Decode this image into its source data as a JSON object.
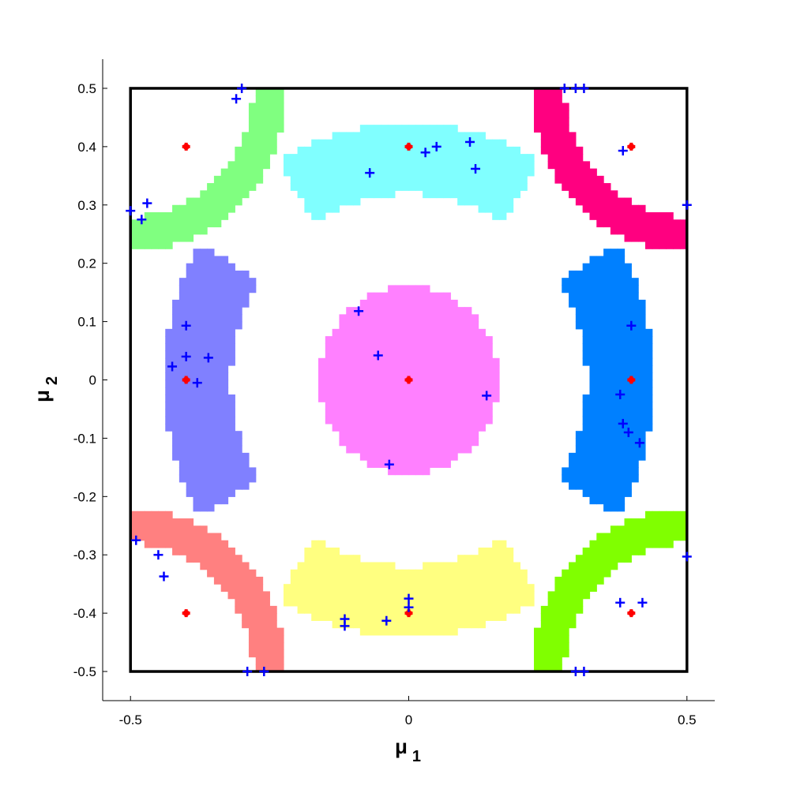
{
  "chart_data": {
    "type": "scatter",
    "title": "",
    "xlabel": {
      "symbol": "μ",
      "subscript": "1"
    },
    "ylabel": {
      "symbol": "μ",
      "subscript": "2"
    },
    "xlim": [
      -0.55,
      0.55
    ],
    "ylim": [
      -0.55,
      0.55
    ],
    "xticks": [
      "-0.5",
      "0",
      "0.5"
    ],
    "yticks": [
      "-0.5",
      "-0.4",
      "-0.3",
      "-0.2",
      "-0.1",
      "0",
      "0.1",
      "0.2",
      "0.3",
      "0.4",
      "0.5"
    ],
    "grid": false,
    "boundary_box": {
      "x": [
        -0.5,
        0.5
      ],
      "y": [
        -0.5,
        0.5
      ],
      "color": "#000000"
    },
    "regions": [
      {
        "shape": "disk",
        "center": [
          0,
          0
        ],
        "r": 0.16,
        "color": "#ff80ff"
      },
      {
        "shape": "arc",
        "center": [
          0,
          0
        ],
        "r_in": 0.32,
        "r_out": 0.44,
        "angle_range": [
          58,
          122
        ],
        "color": "#80ffff"
      },
      {
        "shape": "arc",
        "center": [
          0,
          0
        ],
        "r_in": 0.32,
        "r_out": 0.44,
        "angle_range": [
          238,
          302
        ],
        "color": "#ffff80"
      },
      {
        "shape": "arc",
        "center": [
          0,
          0
        ],
        "r_in": 0.32,
        "r_out": 0.44,
        "angle_range": [
          148,
          212
        ],
        "color": "#8080ff"
      },
      {
        "shape": "arc",
        "center": [
          0,
          0
        ],
        "r_in": 0.32,
        "r_out": 0.44,
        "angle_range": [
          -32,
          32
        ],
        "color": "#0080ff"
      },
      {
        "shape": "arc",
        "center": [
          -0.5,
          -0.5
        ],
        "r_in": 0.22,
        "r_out": 0.28,
        "angle_range": [
          0,
          90
        ],
        "color": "#ff8080"
      },
      {
        "shape": "arc",
        "center": [
          0.5,
          -0.5
        ],
        "r_in": 0.22,
        "r_out": 0.28,
        "angle_range": [
          90,
          180
        ],
        "color": "#80ff00"
      },
      {
        "shape": "arc",
        "center": [
          -0.5,
          0.5
        ],
        "r_in": 0.22,
        "r_out": 0.28,
        "angle_range": [
          270,
          360
        ],
        "color": "#80ff80"
      },
      {
        "shape": "arc",
        "center": [
          0.5,
          0.5
        ],
        "r_in": 0.22,
        "r_out": 0.28,
        "angle_range": [
          180,
          270
        ],
        "color": "#ff0080"
      }
    ],
    "series": [
      {
        "marker": "dot",
        "color": "#ff0000",
        "points": [
          [
            0,
            0
          ],
          [
            0,
            0.4
          ],
          [
            0,
            -0.4
          ],
          [
            -0.4,
            0
          ],
          [
            0.4,
            0
          ],
          [
            -0.4,
            0.4
          ],
          [
            0.4,
            0.4
          ],
          [
            -0.4,
            -0.4
          ],
          [
            0.4,
            -0.4
          ]
        ]
      },
      {
        "marker": "plus",
        "color": "#0000ff",
        "points": [
          [
            -0.3,
            0.5
          ],
          [
            -0.31,
            0.482
          ],
          [
            -0.47,
            0.303
          ],
          [
            -0.5,
            0.29
          ],
          [
            -0.48,
            0.275
          ],
          [
            -0.07,
            0.355
          ],
          [
            0.03,
            0.39
          ],
          [
            0.05,
            0.4
          ],
          [
            0.11,
            0.408
          ],
          [
            0.12,
            0.362
          ],
          [
            0.28,
            0.5
          ],
          [
            0.3,
            0.5
          ],
          [
            0.315,
            0.5
          ],
          [
            0.385,
            0.393
          ],
          [
            0.5,
            0.3
          ],
          [
            -0.4,
            0.093
          ],
          [
            -0.4,
            0.04
          ],
          [
            -0.425,
            0.023
          ],
          [
            -0.36,
            0.038
          ],
          [
            -0.38,
            -0.005
          ],
          [
            -0.09,
            0.118
          ],
          [
            -0.055,
            0.042
          ],
          [
            0.14,
            -0.027
          ],
          [
            -0.035,
            -0.145
          ],
          [
            0.4,
            0.093
          ],
          [
            0.38,
            -0.025
          ],
          [
            0.385,
            -0.075
          ],
          [
            0.395,
            -0.09
          ],
          [
            0.415,
            -0.108
          ],
          [
            -0.49,
            -0.275
          ],
          [
            -0.45,
            -0.3
          ],
          [
            -0.44,
            -0.337
          ],
          [
            -0.115,
            -0.41
          ],
          [
            -0.115,
            -0.422
          ],
          [
            -0.04,
            -0.413
          ],
          [
            0,
            -0.375
          ],
          [
            0,
            -0.39
          ],
          [
            -0.29,
            -0.5
          ],
          [
            -0.26,
            -0.5
          ],
          [
            0.38,
            -0.382
          ],
          [
            0.42,
            -0.382
          ],
          [
            0.5,
            -0.303
          ],
          [
            0.3,
            -0.5
          ],
          [
            0.315,
            -0.5
          ]
        ]
      }
    ]
  }
}
